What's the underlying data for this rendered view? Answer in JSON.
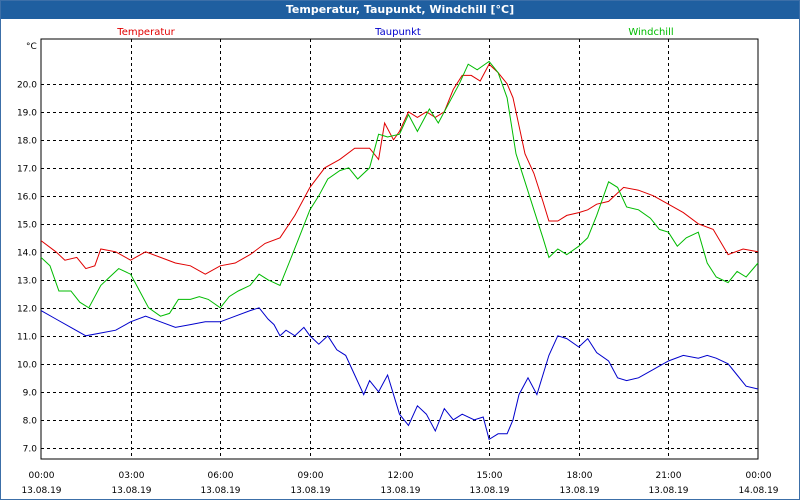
{
  "window": {
    "title": "Temperatur, Taupunkt, Windchill [°C]"
  },
  "chart_data": {
    "type": "line",
    "title": "Temperatur, Taupunkt, Windchill [°C]",
    "ylabel": "°C",
    "xlabel": "",
    "ylim": [
      6.6,
      21.6
    ],
    "yticks": [
      7.0,
      8.0,
      9.0,
      10.0,
      11.0,
      12.0,
      13.0,
      14.0,
      15.0,
      16.0,
      17.0,
      18.0,
      19.0,
      20.0
    ],
    "xlim": [
      0,
      24
    ],
    "xticks": [
      {
        "hour": 0,
        "time": "00:00",
        "date": "13.08.19"
      },
      {
        "hour": 3,
        "time": "03:00",
        "date": "13.08.19"
      },
      {
        "hour": 6,
        "time": "06:00",
        "date": "13.08.19"
      },
      {
        "hour": 9,
        "time": "09:00",
        "date": "13.08.19"
      },
      {
        "hour": 12,
        "time": "12:00",
        "date": "13.08.19"
      },
      {
        "hour": 15,
        "time": "15:00",
        "date": "13.08.19"
      },
      {
        "hour": 18,
        "time": "18:00",
        "date": "13.08.19"
      },
      {
        "hour": 21,
        "time": "21:00",
        "date": "13.08.19"
      },
      {
        "hour": 24,
        "time": "00:00",
        "date": "14.08.19"
      }
    ],
    "grid": true,
    "legend_position": "top",
    "series": [
      {
        "name": "Temperatur",
        "color": "#e00000",
        "points": [
          [
            0,
            14.4
          ],
          [
            0.5,
            14.0
          ],
          [
            0.8,
            13.7
          ],
          [
            1.2,
            13.8
          ],
          [
            1.5,
            13.4
          ],
          [
            1.8,
            13.5
          ],
          [
            2.0,
            14.1
          ],
          [
            2.5,
            14.0
          ],
          [
            3.0,
            13.7
          ],
          [
            3.5,
            14.0
          ],
          [
            4.0,
            13.8
          ],
          [
            4.5,
            13.6
          ],
          [
            5.0,
            13.5
          ],
          [
            5.5,
            13.2
          ],
          [
            6.0,
            13.5
          ],
          [
            6.5,
            13.6
          ],
          [
            7.0,
            13.9
          ],
          [
            7.5,
            14.3
          ],
          [
            8.0,
            14.5
          ],
          [
            8.5,
            15.3
          ],
          [
            9.0,
            16.3
          ],
          [
            9.5,
            17.0
          ],
          [
            10.0,
            17.3
          ],
          [
            10.5,
            17.7
          ],
          [
            11.0,
            17.7
          ],
          [
            11.3,
            17.3
          ],
          [
            11.5,
            18.6
          ],
          [
            11.8,
            18.0
          ],
          [
            12.0,
            18.3
          ],
          [
            12.3,
            19.0
          ],
          [
            12.6,
            18.8
          ],
          [
            12.9,
            19.0
          ],
          [
            13.2,
            18.8
          ],
          [
            13.5,
            19.0
          ],
          [
            13.8,
            19.8
          ],
          [
            14.1,
            20.3
          ],
          [
            14.4,
            20.3
          ],
          [
            14.7,
            20.1
          ],
          [
            15.0,
            20.7
          ],
          [
            15.3,
            20.4
          ],
          [
            15.6,
            20.0
          ],
          [
            15.8,
            19.5
          ],
          [
            16.0,
            18.5
          ],
          [
            16.2,
            17.5
          ],
          [
            16.5,
            16.8
          ],
          [
            16.8,
            15.8
          ],
          [
            17.0,
            15.1
          ],
          [
            17.3,
            15.1
          ],
          [
            17.6,
            15.3
          ],
          [
            18.0,
            15.4
          ],
          [
            18.3,
            15.5
          ],
          [
            18.6,
            15.7
          ],
          [
            19.0,
            15.8
          ],
          [
            19.5,
            16.3
          ],
          [
            20.0,
            16.2
          ],
          [
            20.5,
            16.0
          ],
          [
            21.0,
            15.7
          ],
          [
            21.5,
            15.4
          ],
          [
            22.0,
            15.0
          ],
          [
            22.5,
            14.8
          ],
          [
            23.0,
            13.9
          ],
          [
            23.5,
            14.1
          ],
          [
            24.0,
            14.0
          ]
        ]
      },
      {
        "name": "Taupunkt",
        "color": "#0000cc",
        "points": [
          [
            0,
            11.9
          ],
          [
            0.5,
            11.6
          ],
          [
            1.0,
            11.3
          ],
          [
            1.5,
            11.0
          ],
          [
            2.0,
            11.1
          ],
          [
            2.5,
            11.2
          ],
          [
            3.0,
            11.5
          ],
          [
            3.5,
            11.7
          ],
          [
            4.0,
            11.5
          ],
          [
            4.5,
            11.3
          ],
          [
            5.0,
            11.4
          ],
          [
            5.5,
            11.5
          ],
          [
            6.0,
            11.5
          ],
          [
            6.5,
            11.7
          ],
          [
            7.0,
            11.9
          ],
          [
            7.3,
            12.0
          ],
          [
            7.6,
            11.6
          ],
          [
            7.8,
            11.4
          ],
          [
            8.0,
            11.0
          ],
          [
            8.2,
            11.2
          ],
          [
            8.5,
            11.0
          ],
          [
            8.8,
            11.3
          ],
          [
            9.0,
            11.0
          ],
          [
            9.3,
            10.7
          ],
          [
            9.6,
            11.0
          ],
          [
            9.9,
            10.5
          ],
          [
            10.2,
            10.3
          ],
          [
            10.5,
            9.6
          ],
          [
            10.8,
            8.9
          ],
          [
            11.0,
            9.4
          ],
          [
            11.3,
            9.0
          ],
          [
            11.6,
            9.6
          ],
          [
            12.0,
            8.2
          ],
          [
            12.3,
            7.8
          ],
          [
            12.6,
            8.5
          ],
          [
            12.9,
            8.2
          ],
          [
            13.2,
            7.6
          ],
          [
            13.5,
            8.4
          ],
          [
            13.8,
            8.0
          ],
          [
            14.1,
            8.2
          ],
          [
            14.5,
            8.0
          ],
          [
            14.8,
            8.1
          ],
          [
            15.0,
            7.3
          ],
          [
            15.3,
            7.5
          ],
          [
            15.6,
            7.5
          ],
          [
            15.8,
            8.0
          ],
          [
            16.0,
            8.9
          ],
          [
            16.3,
            9.5
          ],
          [
            16.6,
            8.9
          ],
          [
            17.0,
            10.3
          ],
          [
            17.3,
            11.0
          ],
          [
            17.6,
            10.9
          ],
          [
            18.0,
            10.6
          ],
          [
            18.3,
            10.9
          ],
          [
            18.6,
            10.4
          ],
          [
            19.0,
            10.1
          ],
          [
            19.3,
            9.5
          ],
          [
            19.6,
            9.4
          ],
          [
            20.0,
            9.5
          ],
          [
            20.5,
            9.8
          ],
          [
            21.0,
            10.1
          ],
          [
            21.5,
            10.3
          ],
          [
            22.0,
            10.2
          ],
          [
            22.3,
            10.3
          ],
          [
            22.6,
            10.2
          ],
          [
            23.0,
            10.0
          ],
          [
            23.3,
            9.6
          ],
          [
            23.6,
            9.2
          ],
          [
            24.0,
            9.1
          ]
        ]
      },
      {
        "name": "Windchill",
        "color": "#00bb00",
        "points": [
          [
            0,
            13.8
          ],
          [
            0.3,
            13.5
          ],
          [
            0.6,
            12.6
          ],
          [
            1.0,
            12.6
          ],
          [
            1.3,
            12.2
          ],
          [
            1.6,
            12.0
          ],
          [
            2.0,
            12.8
          ],
          [
            2.3,
            13.1
          ],
          [
            2.6,
            13.4
          ],
          [
            3.0,
            13.2
          ],
          [
            3.3,
            12.6
          ],
          [
            3.6,
            12.0
          ],
          [
            4.0,
            11.7
          ],
          [
            4.3,
            11.8
          ],
          [
            4.6,
            12.3
          ],
          [
            5.0,
            12.3
          ],
          [
            5.3,
            12.4
          ],
          [
            5.6,
            12.3
          ],
          [
            6.0,
            12.0
          ],
          [
            6.3,
            12.4
          ],
          [
            6.6,
            12.6
          ],
          [
            7.0,
            12.8
          ],
          [
            7.3,
            13.2
          ],
          [
            7.6,
            13.0
          ],
          [
            8.0,
            12.8
          ],
          [
            8.3,
            13.6
          ],
          [
            8.6,
            14.4
          ],
          [
            9.0,
            15.5
          ],
          [
            9.3,
            16.0
          ],
          [
            9.6,
            16.6
          ],
          [
            10.0,
            16.9
          ],
          [
            10.3,
            17.0
          ],
          [
            10.6,
            16.6
          ],
          [
            11.0,
            17.0
          ],
          [
            11.3,
            18.2
          ],
          [
            11.6,
            18.1
          ],
          [
            12.0,
            18.2
          ],
          [
            12.3,
            18.9
          ],
          [
            12.6,
            18.3
          ],
          [
            13.0,
            19.1
          ],
          [
            13.3,
            18.6
          ],
          [
            13.6,
            19.2
          ],
          [
            14.0,
            20.0
          ],
          [
            14.3,
            20.7
          ],
          [
            14.6,
            20.5
          ],
          [
            15.0,
            20.8
          ],
          [
            15.3,
            20.4
          ],
          [
            15.6,
            19.5
          ],
          [
            15.9,
            17.5
          ],
          [
            16.2,
            16.5
          ],
          [
            16.5,
            15.5
          ],
          [
            16.8,
            14.5
          ],
          [
            17.0,
            13.8
          ],
          [
            17.3,
            14.1
          ],
          [
            17.6,
            13.9
          ],
          [
            18.0,
            14.2
          ],
          [
            18.3,
            14.5
          ],
          [
            18.6,
            15.3
          ],
          [
            19.0,
            16.5
          ],
          [
            19.3,
            16.3
          ],
          [
            19.6,
            15.6
          ],
          [
            20.0,
            15.5
          ],
          [
            20.4,
            15.2
          ],
          [
            20.7,
            14.8
          ],
          [
            21.0,
            14.7
          ],
          [
            21.3,
            14.2
          ],
          [
            21.6,
            14.5
          ],
          [
            22.0,
            14.7
          ],
          [
            22.3,
            13.6
          ],
          [
            22.6,
            13.1
          ],
          [
            23.0,
            12.9
          ],
          [
            23.3,
            13.3
          ],
          [
            23.6,
            13.1
          ],
          [
            24.0,
            13.6
          ]
        ]
      }
    ]
  }
}
